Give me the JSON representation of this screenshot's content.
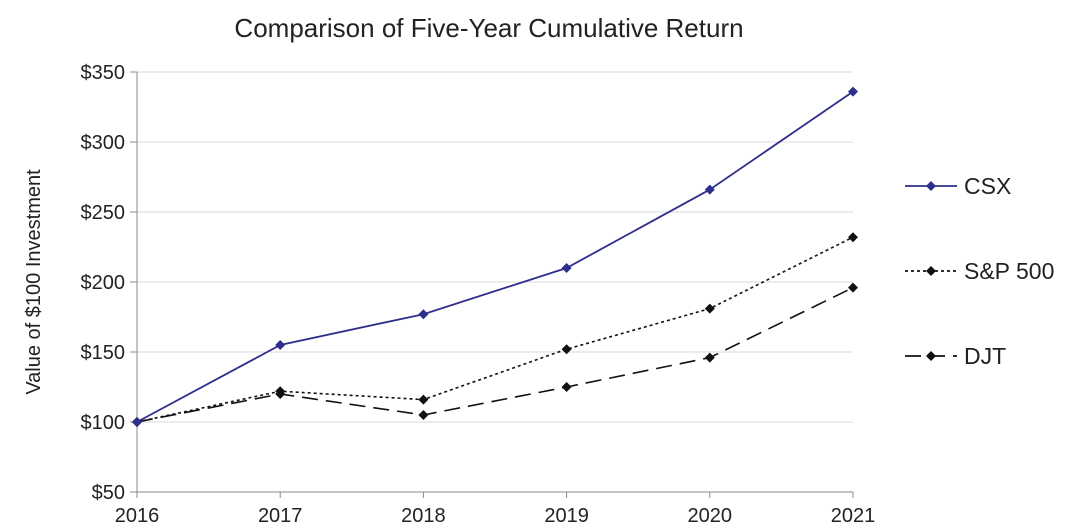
{
  "chart_data": {
    "type": "line",
    "title": "Comparison of Five-Year Cumulative Return",
    "xlabel": "",
    "ylabel": "Value of $100 Investment",
    "x": [
      "2016",
      "2017",
      "2018",
      "2019",
      "2020",
      "2021"
    ],
    "ylim": [
      50,
      350
    ],
    "yticks": [
      "$50",
      "$100",
      "$150",
      "$200",
      "$250",
      "$300",
      "$350"
    ],
    "ytick_values": [
      50,
      100,
      150,
      200,
      250,
      300,
      350
    ],
    "grid": true,
    "legend_position": "right",
    "series": [
      {
        "name": "CSX",
        "values": [
          100,
          155,
          177,
          210,
          266,
          336
        ],
        "color": "#2e2e8c",
        "style": "solid"
      },
      {
        "name": "S&P 500",
        "values": [
          100,
          122,
          116,
          152,
          181,
          232
        ],
        "color": "#111111",
        "style": "dotted"
      },
      {
        "name": "DJT",
        "values": [
          100,
          120,
          105,
          125,
          146,
          196
        ],
        "color": "#111111",
        "style": "dashed"
      }
    ]
  }
}
